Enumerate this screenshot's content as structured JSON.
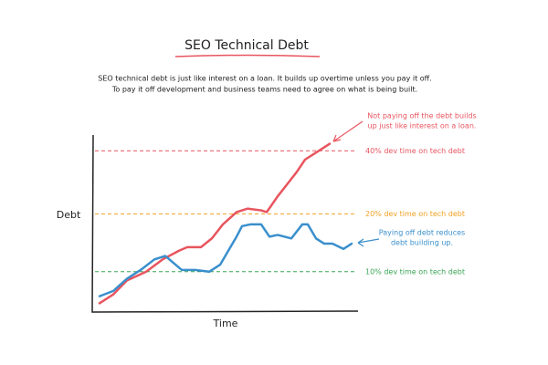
{
  "chart_data": {
    "type": "line",
    "title": "SEO Technical Debt",
    "subtitle": [
      "SEO technical debt is just like interest on a loan. It builds up overtime unless you pay it off.",
      "To pay it off development and business teams need to agree on what is being built."
    ],
    "x_label": "Time",
    "y_label": "Debt",
    "xlim": [
      0,
      100
    ],
    "ylim": [
      0,
      100
    ],
    "series": [
      {
        "name": "Not paying off debt",
        "color": "#e8555f",
        "x": [
          3,
          8,
          13,
          20,
          26,
          32,
          35,
          40,
          44,
          48,
          53,
          57,
          62,
          64,
          68,
          72,
          75,
          78,
          83,
          87
        ],
        "values": [
          4,
          9,
          17,
          22,
          29,
          34,
          36,
          36,
          41,
          49,
          56,
          58,
          57,
          56,
          65,
          73,
          79,
          86,
          91,
          95
        ]
      },
      {
        "name": "Paying off debt",
        "color": "#3a8fcc",
        "x": [
          3,
          8,
          13,
          18,
          23,
          27,
          30,
          33,
          38,
          43,
          47,
          50,
          53,
          55,
          58,
          62,
          65,
          68,
          73,
          77,
          79,
          82,
          85,
          88,
          92,
          95
        ],
        "values": [
          8,
          11,
          18,
          23,
          29,
          31,
          27,
          23,
          23,
          22,
          26,
          34,
          42,
          48,
          49,
          49,
          42,
          43,
          41,
          49,
          49,
          41,
          38,
          38,
          35,
          38
        ]
      }
    ],
    "reference_lines": [
      {
        "label": "40% dev time on tech debt",
        "color": "#e8555f",
        "y": 91
      },
      {
        "label": "20% dev time on tech debt",
        "color": "#f0a020",
        "y": 55
      },
      {
        "label": "10% dev time on tech debt",
        "color": "#3aa655",
        "y": 22
      }
    ],
    "annotations": [
      {
        "lines": [
          "Not paying off the debt builds",
          "up just like interest on a loan."
        ],
        "color": "#e8555f"
      },
      {
        "lines": [
          "Paying off debt reduces",
          "debt building up."
        ],
        "color": "#3a8fcc"
      }
    ]
  }
}
